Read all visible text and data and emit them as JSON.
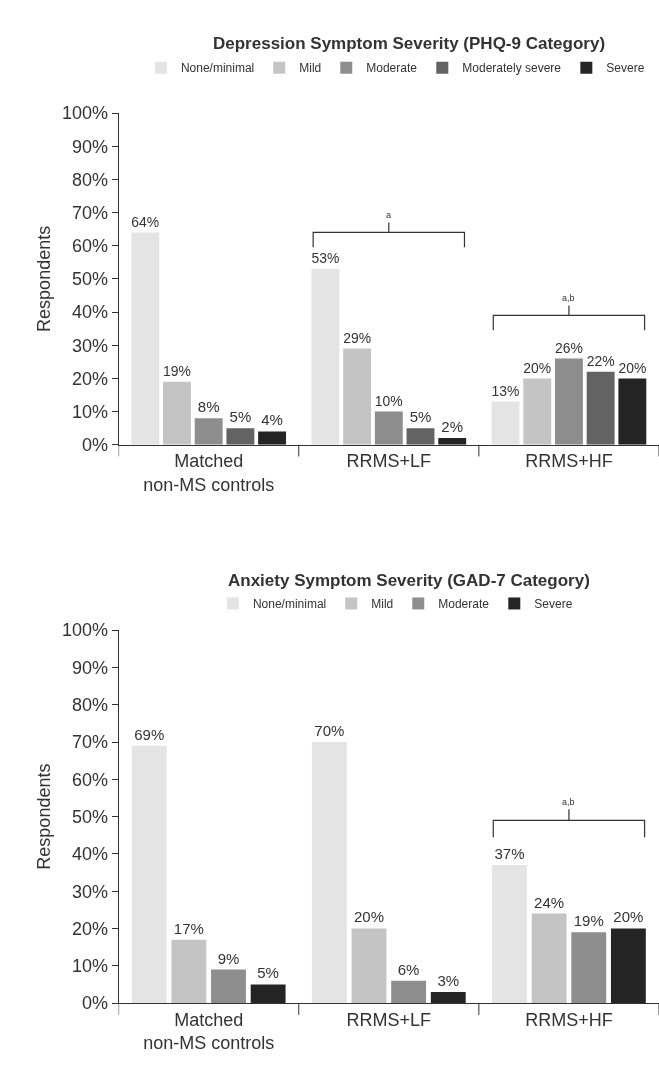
{
  "chart_data": [
    {
      "type": "bar",
      "title": "Depression Symptom Severity (PHQ-9 Category)",
      "ylabel": "Respondents",
      "categories": [
        "Matched\nnon-MS controls",
        "RRMS+LF",
        "RRMS+HF"
      ],
      "series": [
        {
          "name": "None/minimal",
          "color": "#e4e4e4",
          "values": [
            64,
            53,
            13
          ],
          "value_labels": [
            "64%",
            "53%",
            "13%"
          ]
        },
        {
          "name": "Mild",
          "color": "#c4c4c4",
          "values": [
            19,
            29,
            20
          ],
          "value_labels": [
            "19%",
            "29%",
            "20%"
          ]
        },
        {
          "name": "Moderate",
          "color": "#8e8e8e",
          "values": [
            8,
            10,
            26
          ],
          "value_labels": [
            "8%",
            "10%",
            "26%"
          ]
        },
        {
          "name": "Moderately severe",
          "color": "#636363",
          "values": [
            5,
            5,
            22
          ],
          "value_labels": [
            "5%",
            "5%",
            "22%"
          ]
        },
        {
          "name": "Severe",
          "color": "#242424",
          "values": [
            4,
            2,
            20
          ],
          "value_labels": [
            "4%",
            "2%",
            "20%"
          ]
        }
      ],
      "ylim": [
        0,
        100
      ],
      "yticks": [
        {
          "value": 0,
          "label": "0%"
        },
        {
          "value": 10,
          "label": "10%"
        },
        {
          "value": 20,
          "label": "20%"
        },
        {
          "value": 30,
          "label": "30%"
        },
        {
          "value": 40,
          "label": "40%"
        },
        {
          "value": 50,
          "label": "50%"
        },
        {
          "value": 60,
          "label": "60%"
        },
        {
          "value": 70,
          "label": "70%"
        },
        {
          "value": 80,
          "label": "80%"
        },
        {
          "value": 90,
          "label": "90%"
        },
        {
          "value": 100,
          "label": "100%"
        }
      ],
      "annotations": [
        "a",
        "a,b"
      ],
      "legend": "top"
    },
    {
      "type": "bar",
      "title": "Anxiety Symptom Severity (GAD-7 Category)",
      "ylabel": "Respondents",
      "categories": [
        "Matched\nnon-MS controls",
        "RRMS+LF",
        "RRMS+HF"
      ],
      "series": [
        {
          "name": "None/minimal",
          "color": "#e4e4e4",
          "values": [
            69,
            70,
            37
          ],
          "value_labels": [
            "69%",
            "70%",
            "37%"
          ]
        },
        {
          "name": "Mild",
          "color": "#c4c4c4",
          "values": [
            17,
            20,
            24
          ],
          "value_labels": [
            "17%",
            "20%",
            "24%"
          ]
        },
        {
          "name": "Moderate",
          "color": "#8e8e8e",
          "values": [
            9,
            6,
            19
          ],
          "value_labels": [
            "9%",
            "6%",
            "19%"
          ]
        },
        {
          "name": "Severe",
          "color": "#242424",
          "values": [
            5,
            3,
            20
          ],
          "value_labels": [
            "5%",
            "3%",
            "20%"
          ]
        }
      ],
      "ylim": [
        0,
        100
      ],
      "yticks": [
        {
          "value": 0,
          "label": "0%"
        },
        {
          "value": 10,
          "label": "10%"
        },
        {
          "value": 20,
          "label": "20%"
        },
        {
          "value": 30,
          "label": "30%"
        },
        {
          "value": 40,
          "label": "40%"
        },
        {
          "value": 50,
          "label": "50%"
        },
        {
          "value": 60,
          "label": "60%"
        },
        {
          "value": 70,
          "label": "70%"
        },
        {
          "value": 80,
          "label": "80%"
        },
        {
          "value": 90,
          "label": "90%"
        },
        {
          "value": 100,
          "label": "100%"
        }
      ],
      "annotations": [
        "a,b"
      ],
      "legend": "top"
    }
  ]
}
